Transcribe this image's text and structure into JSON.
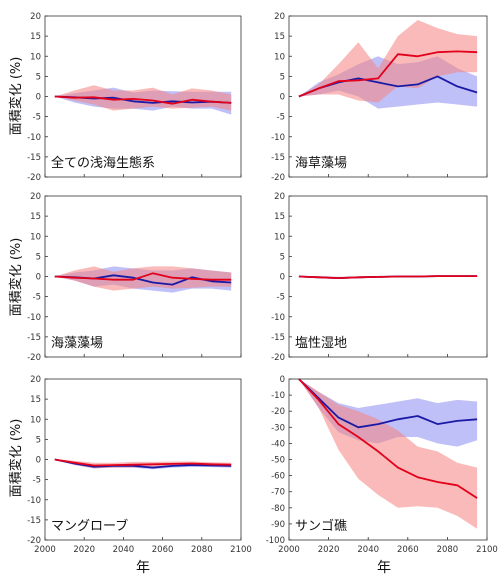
{
  "figure": {
    "ylabel": "面積変化 (%)",
    "xlabel": "年"
  },
  "colors": {
    "red_line": "#e3001b",
    "red_band": "#f4827f",
    "blue_line": "#1a1aa6",
    "blue_band": "#8c8cf2"
  },
  "chart_data": [
    {
      "type": "line",
      "panel_label": "全ての浅海生態系",
      "x": [
        2005,
        2015,
        2025,
        2035,
        2045,
        2055,
        2065,
        2075,
        2085,
        2095
      ],
      "xlim": [
        2000,
        2100
      ],
      "xticks": [
        2000,
        2020,
        2040,
        2060,
        2080,
        2100
      ],
      "ylim": [
        -20,
        20
      ],
      "yticks": [
        -20,
        -15,
        -10,
        -5,
        0,
        5,
        10,
        15,
        20
      ],
      "series": [
        {
          "color": "blue",
          "values": [
            0,
            -0.2,
            -0.5,
            -0.3,
            -1.2,
            -1.6,
            -1.2,
            -1.5,
            -1.3,
            -1.6
          ],
          "lower": [
            0,
            -1.5,
            -2.5,
            -3.0,
            -3.0,
            -3.5,
            -2.5,
            -3.0,
            -3.0,
            -4.5
          ],
          "upper": [
            0,
            0.8,
            1.5,
            2.2,
            1.0,
            1.5,
            1.3,
            1.2,
            1.2,
            1.2
          ]
        },
        {
          "color": "red",
          "values": [
            0,
            -0.3,
            -0.2,
            -0.8,
            -0.6,
            -1.0,
            -1.8,
            -0.8,
            -1.3,
            -1.6
          ],
          "lower": [
            0,
            -1.0,
            -2.0,
            -3.5,
            -3.0,
            -2.5,
            -3.0,
            -2.8,
            -2.5,
            -3.5
          ],
          "upper": [
            0,
            1.5,
            2.8,
            1.5,
            1.5,
            2.2,
            0.5,
            2.0,
            1.5,
            0.5
          ]
        }
      ]
    },
    {
      "type": "line",
      "panel_label": "海草藻場",
      "x": [
        2005,
        2015,
        2025,
        2035,
        2045,
        2055,
        2065,
        2075,
        2085,
        2095
      ],
      "xlim": [
        2000,
        2100
      ],
      "xticks": [
        2000,
        2020,
        2040,
        2060,
        2080,
        2100
      ],
      "ylim": [
        -20,
        20
      ],
      "yticks": [
        -20,
        -15,
        -10,
        -5,
        0,
        5,
        10,
        15,
        20
      ],
      "series": [
        {
          "color": "blue",
          "values": [
            0,
            2.0,
            3.5,
            4.5,
            3.5,
            2.5,
            3.0,
            5.0,
            2.5,
            1.0
          ],
          "lower": [
            0,
            0.5,
            1.5,
            0.0,
            -3.0,
            -2.5,
            -2.0,
            -1.5,
            -2.0,
            -2.5
          ],
          "upper": [
            0,
            3.5,
            5.5,
            8.0,
            10.0,
            8.0,
            8.5,
            10.0,
            7.0,
            5.0
          ]
        },
        {
          "color": "red",
          "values": [
            0,
            2.0,
            3.8,
            4.0,
            4.5,
            10.5,
            10.0,
            11.0,
            11.2,
            11.0
          ],
          "lower": [
            0,
            0.5,
            0.5,
            -1.0,
            -1.5,
            2.5,
            2.0,
            5.0,
            6.0,
            6.0
          ],
          "upper": [
            0,
            3.0,
            8.0,
            13.5,
            7.0,
            15.0,
            19.0,
            17.0,
            15.5,
            15.0
          ]
        }
      ]
    },
    {
      "type": "line",
      "panel_label": "海藻藻場",
      "x": [
        2005,
        2015,
        2025,
        2035,
        2045,
        2055,
        2065,
        2075,
        2085,
        2095
      ],
      "xlim": [
        2000,
        2100
      ],
      "xticks": [
        2000,
        2020,
        2040,
        2060,
        2080,
        2100
      ],
      "ylim": [
        -20,
        20
      ],
      "yticks": [
        -20,
        -15,
        -10,
        -5,
        0,
        5,
        10,
        15,
        20
      ],
      "series": [
        {
          "color": "blue",
          "values": [
            0,
            -0.2,
            -0.5,
            0.3,
            -0.3,
            -1.5,
            -2.0,
            -0.2,
            -1.2,
            -1.5
          ],
          "lower": [
            0,
            -1.0,
            -2.5,
            -2.0,
            -3.0,
            -3.5,
            -4.0,
            -3.0,
            -3.0,
            -3.5
          ],
          "upper": [
            0,
            1.0,
            1.5,
            2.5,
            2.0,
            1.5,
            1.5,
            2.0,
            1.5,
            1.0
          ]
        },
        {
          "color": "red",
          "values": [
            0,
            -0.3,
            -0.5,
            -0.8,
            -0.8,
            0.8,
            -0.3,
            -0.6,
            -0.8,
            -0.8
          ],
          "lower": [
            0,
            -1.0,
            -2.5,
            -3.5,
            -3.0,
            -2.5,
            -3.0,
            -2.8,
            -2.5,
            -2.5
          ],
          "upper": [
            0,
            1.5,
            2.5,
            1.2,
            2.0,
            2.5,
            2.5,
            2.0,
            1.5,
            1.0
          ]
        }
      ]
    },
    {
      "type": "line",
      "panel_label": "塩性湿地",
      "x": [
        2005,
        2015,
        2025,
        2035,
        2045,
        2055,
        2065,
        2075,
        2085,
        2095
      ],
      "xlim": [
        2000,
        2100
      ],
      "xticks": [
        2000,
        2020,
        2040,
        2060,
        2080,
        2100
      ],
      "ylim": [
        -20,
        20
      ],
      "yticks": [
        -20,
        -15,
        -10,
        -5,
        0,
        5,
        10,
        15,
        20
      ],
      "series": [
        {
          "color": "blue",
          "values": [
            0,
            -0.2,
            -0.4,
            -0.2,
            -0.1,
            0,
            0,
            0.1,
            0.1,
            0.1
          ],
          "lower": [
            0,
            -0.4,
            -0.6,
            -0.4,
            -0.3,
            -0.2,
            -0.2,
            -0.1,
            -0.1,
            -0.1
          ],
          "upper": [
            0,
            0.1,
            -0.1,
            0,
            0.1,
            0.2,
            0.2,
            0.3,
            0.3,
            0.3
          ]
        },
        {
          "color": "red",
          "values": [
            0,
            -0.2,
            -0.4,
            -0.2,
            -0.1,
            0,
            0,
            0.1,
            0.1,
            0.1
          ],
          "lower": [
            0,
            -0.4,
            -0.6,
            -0.4,
            -0.3,
            -0.2,
            -0.2,
            -0.1,
            -0.1,
            -0.1
          ],
          "upper": [
            0,
            0.1,
            -0.1,
            0,
            0.1,
            0.2,
            0.2,
            0.3,
            0.3,
            0.3
          ]
        }
      ]
    },
    {
      "type": "line",
      "panel_label": "マングローブ",
      "x": [
        2005,
        2015,
        2025,
        2035,
        2045,
        2055,
        2065,
        2075,
        2085,
        2095
      ],
      "xlim": [
        2000,
        2100
      ],
      "xticks": [
        2000,
        2020,
        2040,
        2060,
        2080,
        2100
      ],
      "ylim": [
        -20,
        20
      ],
      "yticks": [
        -20,
        -15,
        -10,
        -5,
        0,
        5,
        10,
        15,
        20
      ],
      "series": [
        {
          "color": "blue",
          "values": [
            0,
            -1.0,
            -1.8,
            -1.6,
            -1.6,
            -2.0,
            -1.6,
            -1.4,
            -1.5,
            -1.6
          ],
          "lower": [
            0,
            -1.4,
            -2.2,
            -2.0,
            -2.0,
            -2.4,
            -2.0,
            -1.8,
            -1.9,
            -2.0
          ],
          "upper": [
            0,
            -0.6,
            -1.4,
            -1.2,
            -1.2,
            -1.6,
            -1.2,
            -1.0,
            -1.1,
            -1.2
          ]
        },
        {
          "color": "red",
          "values": [
            0,
            -0.8,
            -1.5,
            -1.4,
            -1.3,
            -1.2,
            -1.1,
            -1.0,
            -1.2,
            -1.3
          ],
          "lower": [
            0,
            -1.3,
            -2.2,
            -2.0,
            -2.0,
            -1.8,
            -1.6,
            -1.5,
            -1.7,
            -1.8
          ],
          "upper": [
            0,
            -0.3,
            -0.8,
            -0.8,
            -0.6,
            -0.6,
            -0.5,
            -0.5,
            -0.7,
            -0.8
          ]
        }
      ]
    },
    {
      "type": "line",
      "panel_label": "サンゴ礁",
      "x": [
        2005,
        2015,
        2025,
        2035,
        2045,
        2055,
        2065,
        2075,
        2085,
        2095
      ],
      "xlim": [
        2000,
        2100
      ],
      "xticks": [
        2000,
        2020,
        2040,
        2060,
        2080,
        2100
      ],
      "ylim": [
        -100,
        0
      ],
      "yticks": [
        -100,
        -90,
        -80,
        -70,
        -60,
        -50,
        -40,
        -30,
        -20,
        -10,
        0
      ],
      "series": [
        {
          "color": "blue",
          "values": [
            0,
            -12,
            -24,
            -30,
            -28,
            -25,
            -23,
            -28,
            -26,
            -25
          ],
          "lower": [
            0,
            -18,
            -33,
            -38,
            -40,
            -36,
            -36,
            -40,
            -42,
            -38
          ],
          "upper": [
            0,
            -8,
            -15,
            -18,
            -16,
            -14,
            -12,
            -15,
            -13,
            -14
          ]
        },
        {
          "color": "red",
          "values": [
            0,
            -13,
            -28,
            -36,
            -45,
            -55,
            -61,
            -64,
            -66,
            -74
          ],
          "lower": [
            0,
            -18,
            -44,
            -62,
            -72,
            -80,
            -79,
            -80,
            -85,
            -93
          ],
          "upper": [
            0,
            -8,
            -16,
            -20,
            -25,
            -32,
            -42,
            -45,
            -52,
            -55
          ]
        }
      ]
    }
  ]
}
